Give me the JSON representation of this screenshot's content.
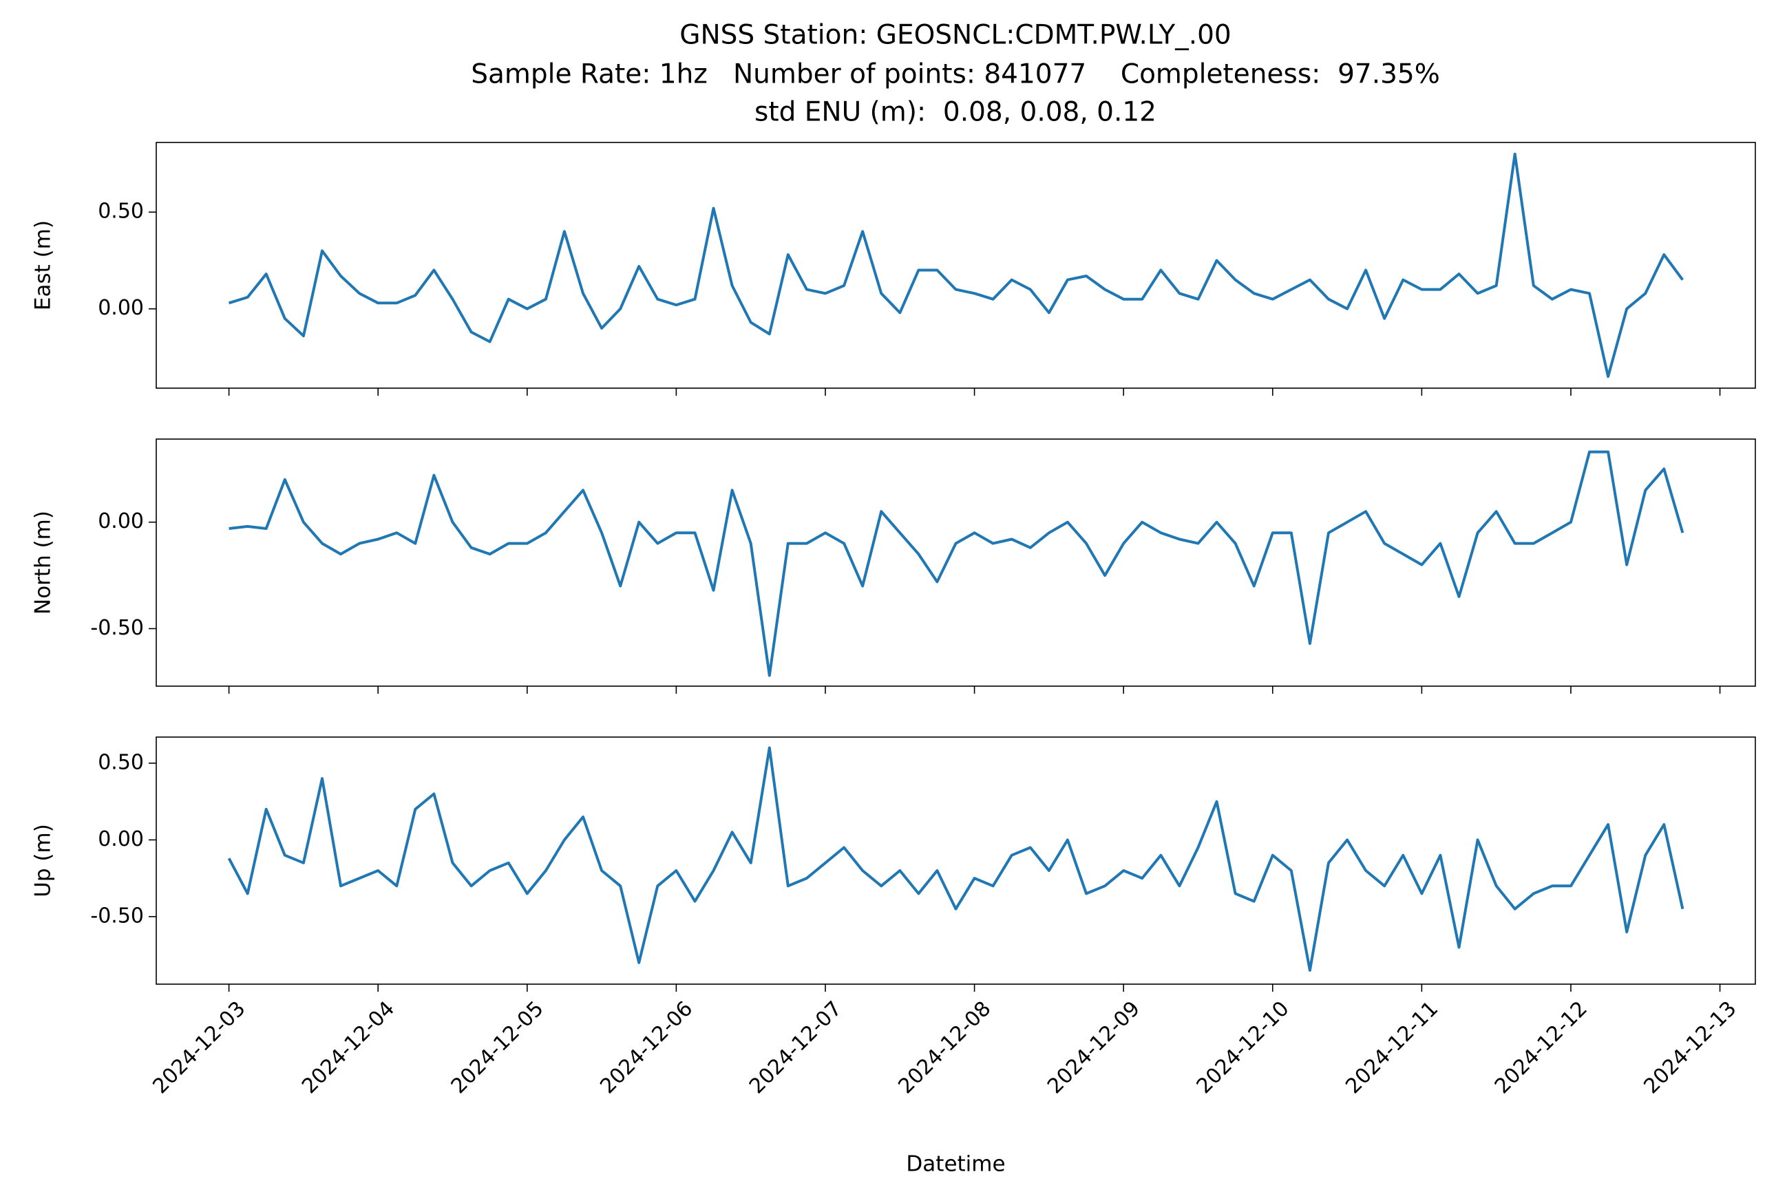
{
  "chart_data": [
    {
      "type": "line",
      "title": [
        "GNSS Station: GEOSNCL:CDMT.PW.LY_.00",
        "Sample Rate: 1hz   Number of points: 841077    Completeness:  97.35%",
        "std ENU (m):  0.08, 0.08, 0.12"
      ],
      "ylabel": "East (m)",
      "color": "#1f77b4",
      "x": [
        "2024-12-03T00:00",
        "2024-12-03T03:00",
        "2024-12-03T06:00",
        "2024-12-03T09:00",
        "2024-12-03T12:00",
        "2024-12-03T15:00",
        "2024-12-03T18:00",
        "2024-12-03T21:00",
        "2024-12-04T00:00",
        "2024-12-04T03:00",
        "2024-12-04T06:00",
        "2024-12-04T09:00",
        "2024-12-04T12:00",
        "2024-12-04T15:00",
        "2024-12-04T18:00",
        "2024-12-04T21:00",
        "2024-12-05T00:00",
        "2024-12-05T03:00",
        "2024-12-05T06:00",
        "2024-12-05T09:00",
        "2024-12-05T12:00",
        "2024-12-05T15:00",
        "2024-12-05T18:00",
        "2024-12-05T21:00",
        "2024-12-06T00:00",
        "2024-12-06T03:00",
        "2024-12-06T06:00",
        "2024-12-06T09:00",
        "2024-12-06T12:00",
        "2024-12-06T15:00",
        "2024-12-06T18:00",
        "2024-12-06T21:00",
        "2024-12-07T00:00",
        "2024-12-07T03:00",
        "2024-12-07T06:00",
        "2024-12-07T09:00",
        "2024-12-07T12:00",
        "2024-12-07T15:00",
        "2024-12-07T18:00",
        "2024-12-07T21:00",
        "2024-12-08T00:00",
        "2024-12-08T03:00",
        "2024-12-08T06:00",
        "2024-12-08T09:00",
        "2024-12-08T12:00",
        "2024-12-08T15:00",
        "2024-12-08T18:00",
        "2024-12-08T21:00",
        "2024-12-09T00:00",
        "2024-12-09T03:00",
        "2024-12-09T06:00",
        "2024-12-09T09:00",
        "2024-12-09T12:00",
        "2024-12-09T15:00",
        "2024-12-09T18:00",
        "2024-12-09T21:00",
        "2024-12-10T00:00",
        "2024-12-10T03:00",
        "2024-12-10T06:00",
        "2024-12-10T09:00",
        "2024-12-10T12:00",
        "2024-12-10T15:00",
        "2024-12-10T18:00",
        "2024-12-10T21:00",
        "2024-12-11T00:00",
        "2024-12-11T03:00",
        "2024-12-11T06:00",
        "2024-12-11T09:00",
        "2024-12-11T12:00",
        "2024-12-11T15:00",
        "2024-12-11T18:00",
        "2024-12-11T21:00",
        "2024-12-12T00:00",
        "2024-12-12T03:00",
        "2024-12-12T06:00",
        "2024-12-12T09:00",
        "2024-12-12T12:00",
        "2024-12-12T15:00",
        "2024-12-12T18:00"
      ],
      "values": [
        0.03,
        0.06,
        0.18,
        -0.05,
        -0.14,
        0.3,
        0.17,
        0.08,
        0.03,
        0.03,
        0.07,
        0.2,
        0.05,
        -0.12,
        -0.17,
        0.05,
        0.0,
        0.05,
        0.4,
        0.08,
        -0.1,
        0.0,
        0.22,
        0.05,
        0.02,
        0.05,
        0.52,
        0.12,
        -0.07,
        -0.13,
        0.28,
        0.1,
        0.08,
        0.12,
        0.4,
        0.08,
        -0.02,
        0.2,
        0.2,
        0.1,
        0.08,
        0.05,
        0.15,
        0.1,
        -0.02,
        0.15,
        0.17,
        0.1,
        0.05,
        0.05,
        0.2,
        0.08,
        0.05,
        0.25,
        0.15,
        0.08,
        0.05,
        0.1,
        0.15,
        0.05,
        0.0,
        0.2,
        -0.05,
        0.15,
        0.1,
        0.1,
        0.18,
        0.08,
        0.12,
        0.8,
        0.12,
        0.05,
        0.1,
        0.08,
        -0.35,
        0.0,
        0.08,
        0.28,
        0.15
      ],
      "xlim": [
        "2024-12-02T12:18",
        "2024-12-13T05:42"
      ],
      "xticks": [
        "2024-12-03",
        "2024-12-04",
        "2024-12-05",
        "2024-12-06",
        "2024-12-07",
        "2024-12-08",
        "2024-12-09",
        "2024-12-10",
        "2024-12-11",
        "2024-12-12",
        "2024-12-13"
      ],
      "ylim": [
        -0.41,
        0.86
      ],
      "yticks": [
        {
          "value": 0,
          "label": "0.00"
        },
        {
          "value": 0.5,
          "label": "0.50"
        }
      ]
    },
    {
      "type": "line",
      "ylabel": "North (m)",
      "color": "#1f77b4",
      "x": [
        "2024-12-03T00:00",
        "2024-12-03T03:00",
        "2024-12-03T06:00",
        "2024-12-03T09:00",
        "2024-12-03T12:00",
        "2024-12-03T15:00",
        "2024-12-03T18:00",
        "2024-12-03T21:00",
        "2024-12-04T00:00",
        "2024-12-04T03:00",
        "2024-12-04T06:00",
        "2024-12-04T09:00",
        "2024-12-04T12:00",
        "2024-12-04T15:00",
        "2024-12-04T18:00",
        "2024-12-04T21:00",
        "2024-12-05T00:00",
        "2024-12-05T03:00",
        "2024-12-05T06:00",
        "2024-12-05T09:00",
        "2024-12-05T12:00",
        "2024-12-05T15:00",
        "2024-12-05T18:00",
        "2024-12-05T21:00",
        "2024-12-06T00:00",
        "2024-12-06T03:00",
        "2024-12-06T06:00",
        "2024-12-06T09:00",
        "2024-12-06T12:00",
        "2024-12-06T15:00",
        "2024-12-06T18:00",
        "2024-12-06T21:00",
        "2024-12-07T00:00",
        "2024-12-07T03:00",
        "2024-12-07T06:00",
        "2024-12-07T09:00",
        "2024-12-07T12:00",
        "2024-12-07T15:00",
        "2024-12-07T18:00",
        "2024-12-07T21:00",
        "2024-12-08T00:00",
        "2024-12-08T03:00",
        "2024-12-08T06:00",
        "2024-12-08T09:00",
        "2024-12-08T12:00",
        "2024-12-08T15:00",
        "2024-12-08T18:00",
        "2024-12-08T21:00",
        "2024-12-09T00:00",
        "2024-12-09T03:00",
        "2024-12-09T06:00",
        "2024-12-09T09:00",
        "2024-12-09T12:00",
        "2024-12-09T15:00",
        "2024-12-09T18:00",
        "2024-12-09T21:00",
        "2024-12-10T00:00",
        "2024-12-10T03:00",
        "2024-12-10T06:00",
        "2024-12-10T09:00",
        "2024-12-10T12:00",
        "2024-12-10T15:00",
        "2024-12-10T18:00",
        "2024-12-10T21:00",
        "2024-12-11T00:00",
        "2024-12-11T03:00",
        "2024-12-11T06:00",
        "2024-12-11T09:00",
        "2024-12-11T12:00",
        "2024-12-11T15:00",
        "2024-12-11T18:00",
        "2024-12-11T21:00",
        "2024-12-12T00:00",
        "2024-12-12T03:00",
        "2024-12-12T06:00",
        "2024-12-12T09:00",
        "2024-12-12T12:00",
        "2024-12-12T15:00",
        "2024-12-12T18:00"
      ],
      "values": [
        -0.03,
        -0.02,
        -0.03,
        0.2,
        0.0,
        -0.1,
        -0.15,
        -0.1,
        -0.08,
        -0.05,
        -0.1,
        0.22,
        0.0,
        -0.12,
        -0.15,
        -0.1,
        -0.1,
        -0.05,
        0.05,
        0.15,
        -0.05,
        -0.3,
        0.0,
        -0.1,
        -0.05,
        -0.05,
        -0.32,
        0.15,
        -0.1,
        -0.72,
        -0.1,
        -0.1,
        -0.05,
        -0.1,
        -0.3,
        0.05,
        -0.05,
        -0.15,
        -0.28,
        -0.1,
        -0.05,
        -0.1,
        -0.08,
        -0.12,
        -0.05,
        0.0,
        -0.1,
        -0.25,
        -0.1,
        0.0,
        -0.05,
        -0.08,
        -0.1,
        0.0,
        -0.1,
        -0.3,
        -0.05,
        -0.05,
        -0.57,
        -0.05,
        0.0,
        0.05,
        -0.1,
        -0.15,
        -0.2,
        -0.1,
        -0.35,
        -0.05,
        0.05,
        -0.1,
        -0.1,
        -0.05,
        0.0,
        0.33,
        0.33,
        -0.2,
        0.15,
        0.25,
        -0.05
      ],
      "xlim": [
        "2024-12-02T12:18",
        "2024-12-13T05:42"
      ],
      "xticks": [
        "2024-12-03",
        "2024-12-04",
        "2024-12-05",
        "2024-12-06",
        "2024-12-07",
        "2024-12-08",
        "2024-12-09",
        "2024-12-10",
        "2024-12-11",
        "2024-12-12",
        "2024-12-13"
      ],
      "ylim": [
        -0.77,
        0.39
      ],
      "yticks": [
        {
          "value": -0.5,
          "label": "-0.50"
        },
        {
          "value": 0,
          "label": "0.00"
        }
      ]
    },
    {
      "type": "line",
      "ylabel": "Up (m)",
      "xlabel": "Datetime",
      "color": "#1f77b4",
      "x": [
        "2024-12-03T00:00",
        "2024-12-03T03:00",
        "2024-12-03T06:00",
        "2024-12-03T09:00",
        "2024-12-03T12:00",
        "2024-12-03T15:00",
        "2024-12-03T18:00",
        "2024-12-03T21:00",
        "2024-12-04T00:00",
        "2024-12-04T03:00",
        "2024-12-04T06:00",
        "2024-12-04T09:00",
        "2024-12-04T12:00",
        "2024-12-04T15:00",
        "2024-12-04T18:00",
        "2024-12-04T21:00",
        "2024-12-05T00:00",
        "2024-12-05T03:00",
        "2024-12-05T06:00",
        "2024-12-05T09:00",
        "2024-12-05T12:00",
        "2024-12-05T15:00",
        "2024-12-05T18:00",
        "2024-12-05T21:00",
        "2024-12-06T00:00",
        "2024-12-06T03:00",
        "2024-12-06T06:00",
        "2024-12-06T09:00",
        "2024-12-06T12:00",
        "2024-12-06T15:00",
        "2024-12-06T18:00",
        "2024-12-06T21:00",
        "2024-12-07T00:00",
        "2024-12-07T03:00",
        "2024-12-07T06:00",
        "2024-12-07T09:00",
        "2024-12-07T12:00",
        "2024-12-07T15:00",
        "2024-12-07T18:00",
        "2024-12-07T21:00",
        "2024-12-08T00:00",
        "2024-12-08T03:00",
        "2024-12-08T06:00",
        "2024-12-08T09:00",
        "2024-12-08T12:00",
        "2024-12-08T15:00",
        "2024-12-08T18:00",
        "2024-12-08T21:00",
        "2024-12-09T00:00",
        "2024-12-09T03:00",
        "2024-12-09T06:00",
        "2024-12-09T09:00",
        "2024-12-09T12:00",
        "2024-12-09T15:00",
        "2024-12-09T18:00",
        "2024-12-09T21:00",
        "2024-12-10T00:00",
        "2024-12-10T03:00",
        "2024-12-10T06:00",
        "2024-12-10T09:00",
        "2024-12-10T12:00",
        "2024-12-10T15:00",
        "2024-12-10T18:00",
        "2024-12-10T21:00",
        "2024-12-11T00:00",
        "2024-12-11T03:00",
        "2024-12-11T06:00",
        "2024-12-11T09:00",
        "2024-12-11T12:00",
        "2024-12-11T15:00",
        "2024-12-11T18:00",
        "2024-12-11T21:00",
        "2024-12-12T00:00",
        "2024-12-12T03:00",
        "2024-12-12T06:00",
        "2024-12-12T09:00",
        "2024-12-12T12:00",
        "2024-12-12T15:00",
        "2024-12-12T18:00"
      ],
      "values": [
        -0.12,
        -0.35,
        0.2,
        -0.1,
        -0.15,
        0.4,
        -0.3,
        -0.25,
        -0.2,
        -0.3,
        0.2,
        0.3,
        -0.15,
        -0.3,
        -0.2,
        -0.15,
        -0.35,
        -0.2,
        0.0,
        0.15,
        -0.2,
        -0.3,
        -0.8,
        -0.3,
        -0.2,
        -0.4,
        -0.2,
        0.05,
        -0.15,
        0.6,
        -0.3,
        -0.25,
        -0.15,
        -0.05,
        -0.2,
        -0.3,
        -0.2,
        -0.35,
        -0.2,
        -0.45,
        -0.25,
        -0.3,
        -0.1,
        -0.05,
        -0.2,
        0.0,
        -0.35,
        -0.3,
        -0.2,
        -0.25,
        -0.1,
        -0.3,
        -0.05,
        0.25,
        -0.35,
        -0.4,
        -0.1,
        -0.2,
        -0.85,
        -0.15,
        0.0,
        -0.2,
        -0.3,
        -0.1,
        -0.35,
        -0.1,
        -0.7,
        0.0,
        -0.3,
        -0.45,
        -0.35,
        -0.3,
        -0.3,
        -0.1,
        0.1,
        -0.6,
        -0.1,
        0.1,
        -0.45
      ],
      "xlim": [
        "2024-12-02T12:18",
        "2024-12-13T05:42"
      ],
      "xticks": [
        "2024-12-03",
        "2024-12-04",
        "2024-12-05",
        "2024-12-06",
        "2024-12-07",
        "2024-12-08",
        "2024-12-09",
        "2024-12-10",
        "2024-12-11",
        "2024-12-12",
        "2024-12-13"
      ],
      "ylim": [
        -0.94,
        0.67
      ],
      "yticks": [
        {
          "value": -0.5,
          "label": "-0.50"
        },
        {
          "value": 0,
          "label": "0.00"
        },
        {
          "value": 0.5,
          "label": "0.50"
        }
      ]
    }
  ]
}
